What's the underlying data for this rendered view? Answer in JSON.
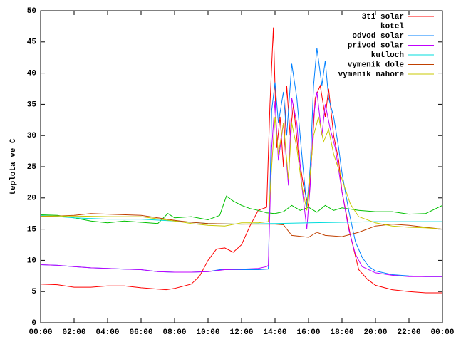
{
  "chart_data": {
    "type": "line",
    "ylabel": "teplota ve C",
    "xlim": [
      0,
      24
    ],
    "ylim": [
      0,
      50
    ],
    "xticks": [
      {
        "value": 0,
        "label": "00:00"
      },
      {
        "value": 2,
        "label": "02:00"
      },
      {
        "value": 4,
        "label": "04:00"
      },
      {
        "value": 6,
        "label": "06:00"
      },
      {
        "value": 8,
        "label": "08:00"
      },
      {
        "value": 10,
        "label": "10:00"
      },
      {
        "value": 12,
        "label": "12:00"
      },
      {
        "value": 14,
        "label": "14:00"
      },
      {
        "value": 16,
        "label": "16:00"
      },
      {
        "value": 18,
        "label": "18:00"
      },
      {
        "value": 20,
        "label": "20:00"
      },
      {
        "value": 22,
        "label": "22:00"
      },
      {
        "value": 24,
        "label": "00:00"
      }
    ],
    "yticks": [
      0,
      5,
      10,
      15,
      20,
      25,
      30,
      35,
      40,
      45,
      50
    ],
    "legend": "upper right",
    "series": [
      {
        "name": "3ti solar",
        "color": "#ff0000",
        "x": [
          0,
          1,
          2,
          3,
          4,
          5,
          6,
          7,
          7.5,
          8,
          9,
          9.5,
          10,
          10.5,
          11,
          11.5,
          12,
          12.5,
          13,
          13.5,
          13.7,
          13.9,
          14.1,
          14.3,
          14.5,
          14.7,
          14.9,
          15.1,
          15.4,
          15.7,
          16,
          16.2,
          16.4,
          16.7,
          17,
          17.2,
          17.5,
          17.8,
          18,
          18.5,
          19,
          19.5,
          20,
          21,
          22,
          23,
          24
        ],
        "values": [
          6.2,
          6.1,
          5.7,
          5.7,
          5.9,
          5.9,
          5.6,
          5.4,
          5.3,
          5.5,
          6.2,
          7.5,
          10,
          11.8,
          12,
          11.3,
          12.5,
          15.5,
          18,
          18.5,
          35,
          47.3,
          28,
          33,
          25,
          38,
          30,
          35,
          27,
          22,
          18.5,
          27,
          36,
          38,
          33,
          37.5,
          30,
          26,
          21,
          14,
          8.5,
          7,
          6,
          5.3,
          5,
          4.8,
          4.8
        ]
      },
      {
        "name": "kotel",
        "color": "#00c000",
        "x": [
          0,
          1,
          2,
          3,
          4,
          5,
          6,
          7,
          7.6,
          8,
          9,
          10,
          10.7,
          11.1,
          11.5,
          12,
          12.5,
          13,
          13.5,
          14,
          14.5,
          15,
          15.5,
          16,
          16.5,
          17,
          17.5,
          18,
          19,
          20,
          21,
          22,
          23,
          24
        ],
        "values": [
          17.3,
          17.2,
          16.8,
          16.3,
          16,
          16.3,
          16.1,
          15.9,
          17.5,
          16.8,
          17,
          16.5,
          17.2,
          20.3,
          19.5,
          18.8,
          18.3,
          18,
          17.6,
          17.5,
          17.8,
          18.8,
          18,
          18.5,
          17.7,
          18.8,
          18,
          18.4,
          18,
          17.8,
          17.8,
          17.4,
          17.5,
          18.8
        ]
      },
      {
        "name": "odvod solar",
        "color": "#0080ff",
        "x": [
          0,
          1,
          2,
          3,
          4,
          5,
          6,
          7,
          8,
          9,
          10,
          10.7,
          11,
          12,
          13,
          13.6,
          13.8,
          14,
          14.2,
          14.5,
          14.7,
          15,
          15.3,
          15.6,
          15.9,
          16.1,
          16.3,
          16.5,
          16.8,
          17,
          17.2,
          17.5,
          17.8,
          18,
          18.4,
          18.8,
          19.2,
          19.6,
          20,
          21,
          22,
          23,
          24
        ],
        "values": [
          9.3,
          9.2,
          9,
          8.8,
          8.7,
          8.6,
          8.5,
          8.2,
          8.1,
          8.1,
          8.2,
          8.5,
          8.5,
          8.5,
          8.5,
          8.6,
          34,
          38.5,
          32,
          37,
          30,
          41.5,
          36,
          27,
          18.5,
          25,
          38,
          44,
          38,
          42,
          36,
          33,
          28,
          24,
          18,
          13,
          10.5,
          9,
          8.3,
          7.7,
          7.5,
          7.4,
          7.4
        ]
      },
      {
        "name": "privod solar",
        "color": "#c000ff",
        "x": [
          0,
          1,
          2,
          3,
          4,
          5,
          6,
          7,
          8,
          9,
          10,
          11,
          12,
          13,
          13.5,
          13.6,
          13.8,
          14,
          14.2,
          14.5,
          14.8,
          15,
          15.3,
          15.6,
          15.9,
          16.1,
          16.3,
          16.5,
          16.8,
          17,
          17.3,
          17.6,
          18,
          18.4,
          18.8,
          19.2,
          20,
          21,
          22,
          23,
          24
        ],
        "values": [
          9.3,
          9.2,
          9,
          8.8,
          8.7,
          8.6,
          8.5,
          8.2,
          8.1,
          8.1,
          8.2,
          8.5,
          8.6,
          8.7,
          9,
          9.2,
          28,
          35.5,
          26,
          32,
          22,
          36,
          32,
          22,
          15,
          22,
          33,
          37,
          30,
          35,
          31,
          28,
          21,
          15,
          11,
          9,
          8,
          7.6,
          7.4,
          7.4,
          7.4
        ]
      },
      {
        "name": "kutloch",
        "color": "#00dddd",
        "x": [
          0,
          2,
          4,
          6,
          8,
          10,
          12,
          14,
          16,
          18,
          20,
          22,
          24
        ],
        "values": [
          17.2,
          16.8,
          16.6,
          16.6,
          16.3,
          15.9,
          15.8,
          15.9,
          16,
          16.1,
          16.2,
          16.2,
          16.2
        ]
      },
      {
        "name": "vymenik dole",
        "color": "#c04000",
        "x": [
          0,
          2,
          3,
          4,
          6,
          8,
          9,
          10,
          12,
          13,
          14,
          14.5,
          15,
          16,
          16.5,
          17,
          17.5,
          18,
          19,
          20,
          21,
          22,
          23,
          24
        ],
        "values": [
          17,
          17.2,
          17.5,
          17.4,
          17.2,
          16.4,
          16.1,
          15.9,
          15.8,
          15.8,
          15.8,
          15.7,
          14,
          13.7,
          14.5,
          14,
          13.9,
          13.8,
          14.5,
          15.5,
          15.8,
          15.6,
          15.3,
          15
        ]
      },
      {
        "name": "vymenik nahore",
        "color": "#c8c800",
        "x": [
          0,
          2,
          4,
          6,
          8,
          9,
          10,
          11,
          12,
          13,
          13.6,
          13.8,
          14,
          14.2,
          14.5,
          14.8,
          15,
          15.3,
          15.6,
          15.9,
          16.1,
          16.3,
          16.6,
          16.9,
          17.2,
          17.5,
          18,
          18.5,
          19,
          20,
          21,
          22,
          23,
          24
        ],
        "values": [
          17.1,
          17.1,
          17,
          17,
          16.3,
          15.9,
          15.6,
          15.5,
          16,
          16,
          16.2,
          25,
          33,
          27,
          32,
          23,
          32,
          28,
          22,
          18,
          24,
          30,
          33,
          29,
          31,
          27,
          23,
          19,
          17,
          16,
          15.5,
          15.3,
          15.2,
          15
        ]
      }
    ]
  }
}
